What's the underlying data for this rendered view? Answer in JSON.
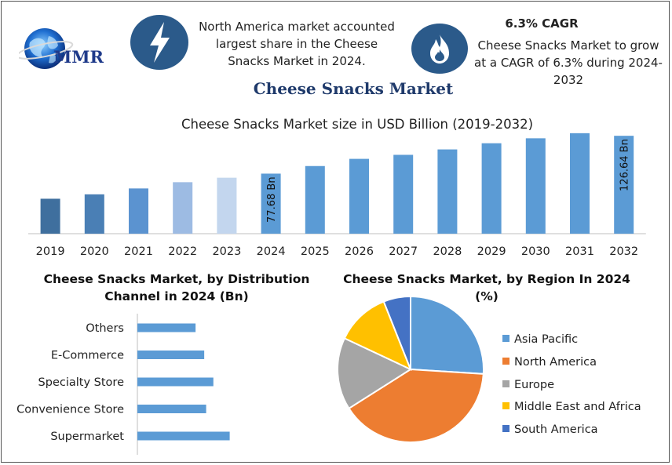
{
  "brand": {
    "logo_text": "MMR"
  },
  "info_cards": {
    "card1": {
      "icon": "lightning-bolt-icon",
      "text": "North America market accounted largest share in the Cheese Snacks Market in 2024."
    },
    "card2": {
      "icon": "flame-icon",
      "title": "6.3% CAGR",
      "text": "Cheese Snacks Market to grow at a CAGR of 6.3% during 2024-2032"
    }
  },
  "main_title": "Cheese Snacks Market",
  "chart_data": [
    {
      "type": "bar",
      "title": "Cheese Snacks Market size in USD Billion (2019-2032)",
      "categories": [
        "2019",
        "2020",
        "2021",
        "2022",
        "2023",
        "2024",
        "2025",
        "2026",
        "2027",
        "2028",
        "2029",
        "2030",
        "2031",
        "2032"
      ],
      "values": [
        45.2,
        50.9,
        58.5,
        66.6,
        72.4,
        77.68,
        87.5,
        96.8,
        102.0,
        109.0,
        117.0,
        123.4,
        130.0,
        126.64
      ],
      "data_labels": {
        "2024": "77.68 Bn",
        "2032": "126.64 Bn"
      },
      "colors": [
        "#3f6f9e",
        "#4a7fb5",
        "#5b93d0",
        "#9dbbe3",
        "#c3d6ee",
        "#5b9bd5",
        "#5b9bd5",
        "#5b9bd5",
        "#5b9bd5",
        "#5b9bd5",
        "#5b9bd5",
        "#5b9bd5",
        "#5b9bd5",
        "#5b9bd5"
      ],
      "ylim": [
        0,
        140
      ],
      "grid": false,
      "legend": "none"
    },
    {
      "type": "bar",
      "orientation": "horizontal",
      "title": "Cheese Snacks Market, by Distribution Channel in 2024 (Bn)",
      "categories": [
        "Others",
        "E-Commerce",
        "Specialty Store",
        "Convenience Store",
        "Supermarket"
      ],
      "values": [
        12.1,
        13.9,
        15.8,
        14.3,
        19.2
      ],
      "colors": [
        "#5b9bd5"
      ],
      "xlim": [
        0,
        40
      ],
      "grid": false
    },
    {
      "type": "pie",
      "title": "Cheese Snacks Market, by Region In 2024 (%)",
      "categories": [
        "Asia Pacific",
        "North America",
        "Europe",
        "Middle East and Africa",
        "South America"
      ],
      "values": [
        26,
        40,
        16,
        12,
        6
      ],
      "colors": [
        "#5b9bd5",
        "#ed7d31",
        "#a5a5a5",
        "#ffc000",
        "#4472c4"
      ],
      "legend": "right"
    }
  ]
}
